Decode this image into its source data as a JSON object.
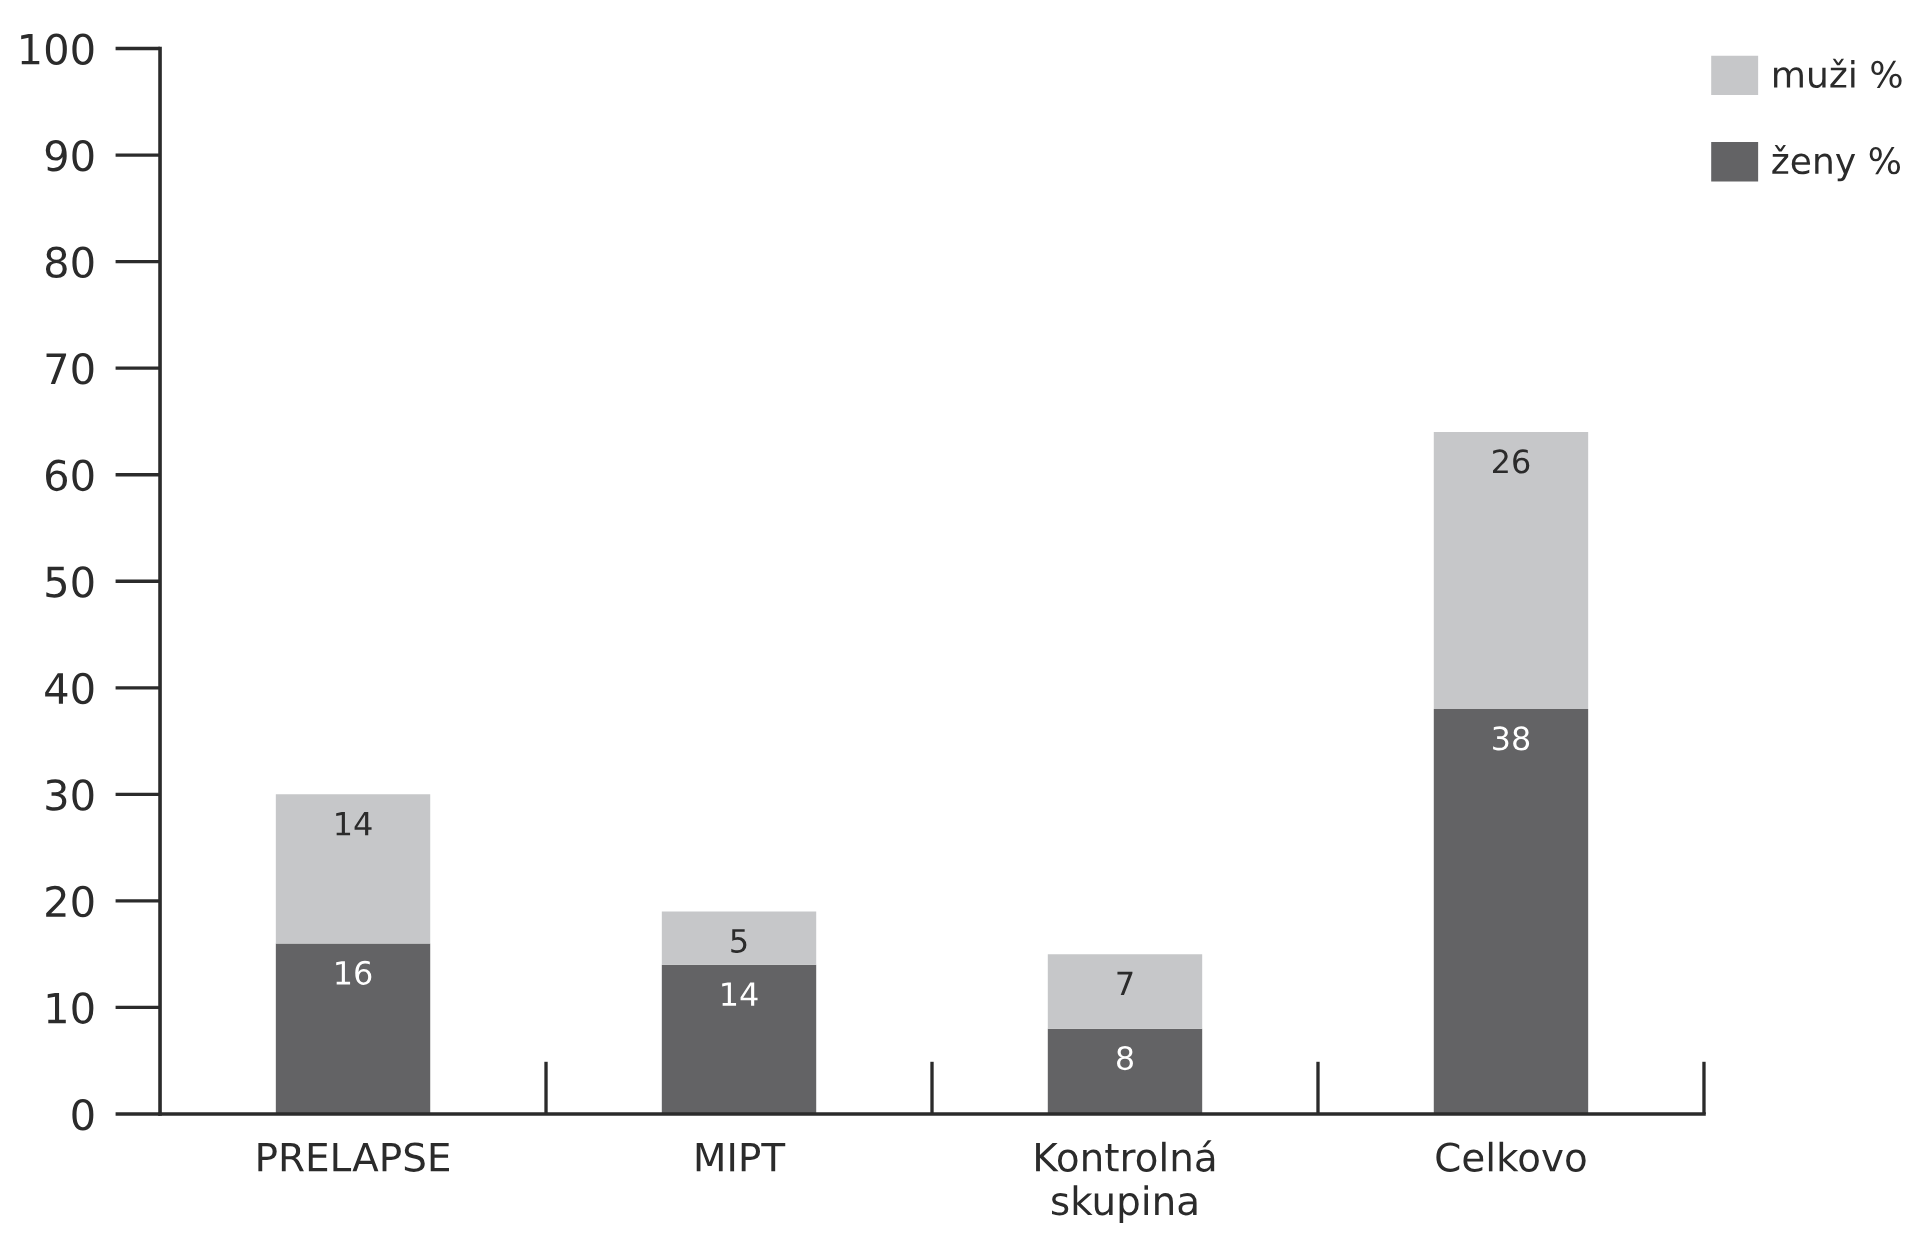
{
  "chart_data": {
    "type": "bar",
    "stacked": true,
    "categories": [
      "PRELAPSE",
      "MIPT",
      "Kontrolná\nskupina",
      "Celkovo"
    ],
    "series": [
      {
        "name": "ženy %",
        "color": "#636365",
        "values": [
          16,
          14,
          8,
          38
        ]
      },
      {
        "name": "muži %",
        "color": "#c6c7c9",
        "values": [
          14,
          5,
          7,
          26
        ]
      }
    ],
    "ylim": [
      0,
      100
    ],
    "yticks": [
      0,
      10,
      20,
      30,
      40,
      50,
      60,
      70,
      80,
      90,
      100
    ],
    "data_labels": true,
    "legend": "top right",
    "grid": false
  }
}
